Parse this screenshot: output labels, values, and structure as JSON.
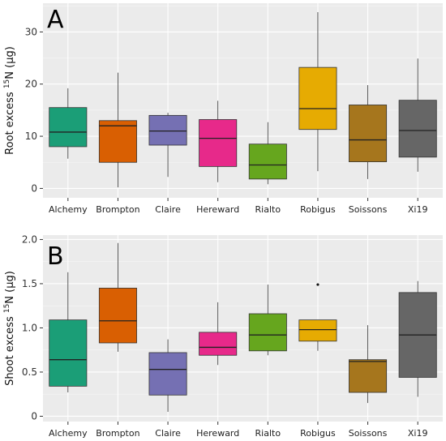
{
  "chart_data": [
    {
      "type": "box",
      "panel_label": "A",
      "ylabel": "Root excess",
      "ylabel_isotope": "15",
      "ylabel_suffix": "N (µg)",
      "categories": [
        "Alchemy",
        "Brompton",
        "Claire",
        "Hereward",
        "Rialto",
        "Robigus",
        "Soissons",
        "Xi19"
      ],
      "colors": [
        "#1b9e77",
        "#d95f02",
        "#7570b3",
        "#e7298a",
        "#66a61e",
        "#e6ab02",
        "#a6761d",
        "#666666"
      ],
      "boxes": [
        {
          "min": 5.7,
          "q1": 8.0,
          "median": 10.8,
          "q3": 15.5,
          "max": 19.2,
          "outliers": []
        },
        {
          "min": 0.2,
          "q1": 5.0,
          "median": 12.0,
          "q3": 13.0,
          "max": 22.2,
          "outliers": []
        },
        {
          "min": 2.2,
          "q1": 8.3,
          "median": 11.0,
          "q3": 14.0,
          "max": 14.5,
          "outliers": []
        },
        {
          "min": 1.2,
          "q1": 4.2,
          "median": 9.6,
          "q3": 13.2,
          "max": 16.8,
          "outliers": []
        },
        {
          "min": 0.8,
          "q1": 1.8,
          "median": 4.5,
          "q3": 8.5,
          "max": 12.7,
          "outliers": []
        },
        {
          "min": 3.3,
          "q1": 11.3,
          "median": 15.3,
          "q3": 23.2,
          "max": 33.8,
          "outliers": []
        },
        {
          "min": 1.8,
          "q1": 5.1,
          "median": 9.3,
          "q3": 16.0,
          "max": 19.8,
          "outliers": []
        },
        {
          "min": 3.2,
          "q1": 6.0,
          "median": 11.1,
          "q3": 16.9,
          "max": 24.9,
          "outliers": []
        }
      ],
      "yticks": [
        0,
        10,
        20,
        30
      ],
      "ylim": [
        -1.8,
        35.5
      ],
      "grid": true
    },
    {
      "type": "box",
      "panel_label": "B",
      "ylabel": "Shoot excess",
      "ylabel_isotope": "15",
      "ylabel_suffix": "N (µg)",
      "categories": [
        "Alchemy",
        "Brompton",
        "Claire",
        "Hereward",
        "Rialto",
        "Robigus",
        "Soissons",
        "Xi19"
      ],
      "colors": [
        "#1b9e77",
        "#d95f02",
        "#7570b3",
        "#e7298a",
        "#66a61e",
        "#e6ab02",
        "#a6761d",
        "#666666"
      ],
      "boxes": [
        {
          "min": 0.27,
          "q1": 0.34,
          "median": 0.64,
          "q3": 1.09,
          "max": 1.63,
          "outliers": []
        },
        {
          "min": 0.73,
          "q1": 0.83,
          "median": 1.08,
          "q3": 1.45,
          "max": 1.96,
          "outliers": []
        },
        {
          "min": 0.05,
          "q1": 0.24,
          "median": 0.53,
          "q3": 0.72,
          "max": 0.87,
          "outliers": []
        },
        {
          "min": 0.58,
          "q1": 0.69,
          "median": 0.78,
          "q3": 0.95,
          "max": 1.29,
          "outliers": []
        },
        {
          "min": 0.69,
          "q1": 0.74,
          "median": 0.92,
          "q3": 1.16,
          "max": 1.49,
          "outliers": []
        },
        {
          "min": 0.74,
          "q1": 0.85,
          "median": 0.98,
          "q3": 1.09,
          "max": 1.09,
          "outliers": [
            1.49
          ]
        },
        {
          "min": 0.15,
          "q1": 0.27,
          "median": 0.62,
          "q3": 0.64,
          "max": 1.03,
          "outliers": []
        },
        {
          "min": 0.22,
          "q1": 0.44,
          "median": 0.92,
          "q3": 1.4,
          "max": 1.53,
          "outliers": []
        }
      ],
      "yticks": [
        0,
        0.5,
        1.0,
        1.5,
        2.0
      ],
      "ytick_labels": [
        "0",
        "0.5",
        "1.0",
        "1.5",
        "2.0"
      ],
      "ylim": [
        -0.06,
        2.05
      ],
      "grid": true
    }
  ]
}
